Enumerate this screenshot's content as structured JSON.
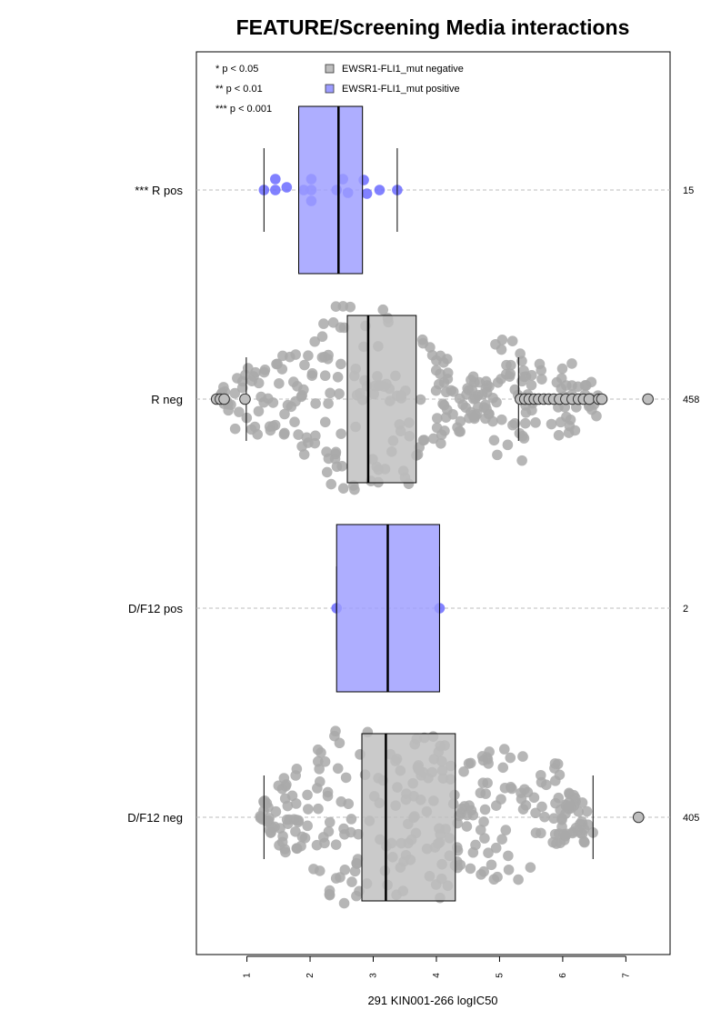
{
  "chart_data": {
    "type": "boxplot",
    "title": "FEATURE/Screening Media interactions",
    "xlabel": "291 KIN001-266 logIC50",
    "ylabel": "",
    "xlim": [
      0.2,
      7.7
    ],
    "xticks": [
      "1",
      "2",
      "3",
      "4",
      "5",
      "6",
      "7"
    ],
    "grid": "dashed horizontal guide per group",
    "legend": {
      "placement": "top",
      "significance": [
        "* p < 0.05",
        "** p < 0.01",
        "*** p < 0.001"
      ],
      "entries": [
        {
          "label": "EWSR1-FLI1_mut negative",
          "color": "#bebebe"
        },
        {
          "label": "EWSR1-FLI1_mut positive",
          "color": "#9c9cff"
        }
      ]
    },
    "colors": {
      "negative_box": "#bebebe",
      "positive_box": "#9c9cff",
      "negative_points": "#a9a9a9",
      "positive_points": "#6b6bff"
    },
    "groups": [
      {
        "label": "*** R pos",
        "count": "15",
        "mutation": "positive",
        "whisker_low": 1.27,
        "q1": 1.82,
        "median": 2.45,
        "q3": 2.83,
        "whisker_high": 3.38,
        "outliers": []
      },
      {
        "label": "R neg",
        "count": "458",
        "mutation": "negative",
        "whisker_low": 0.99,
        "q1": 2.59,
        "median": 2.92,
        "q3": 3.68,
        "whisker_high": 5.3,
        "outliers": [
          0.52,
          0.58,
          0.64,
          0.97,
          5.33,
          5.4,
          5.47,
          5.55,
          5.62,
          5.7,
          5.78,
          5.86,
          5.95,
          6.05,
          6.15,
          6.25,
          6.33,
          6.42,
          6.57,
          6.62,
          7.35
        ]
      },
      {
        "label": "D/F12 pos",
        "count": "2",
        "mutation": "positive",
        "whisker_low": 2.42,
        "q1": 2.42,
        "median": 3.23,
        "q3": 4.05,
        "whisker_high": 4.05,
        "outliers": []
      },
      {
        "label": "D/F12 neg",
        "count": "405",
        "mutation": "negative",
        "whisker_low": 1.27,
        "q1": 2.82,
        "median": 3.2,
        "q3": 4.3,
        "whisker_high": 6.48,
        "outliers": [
          7.2
        ]
      }
    ]
  }
}
